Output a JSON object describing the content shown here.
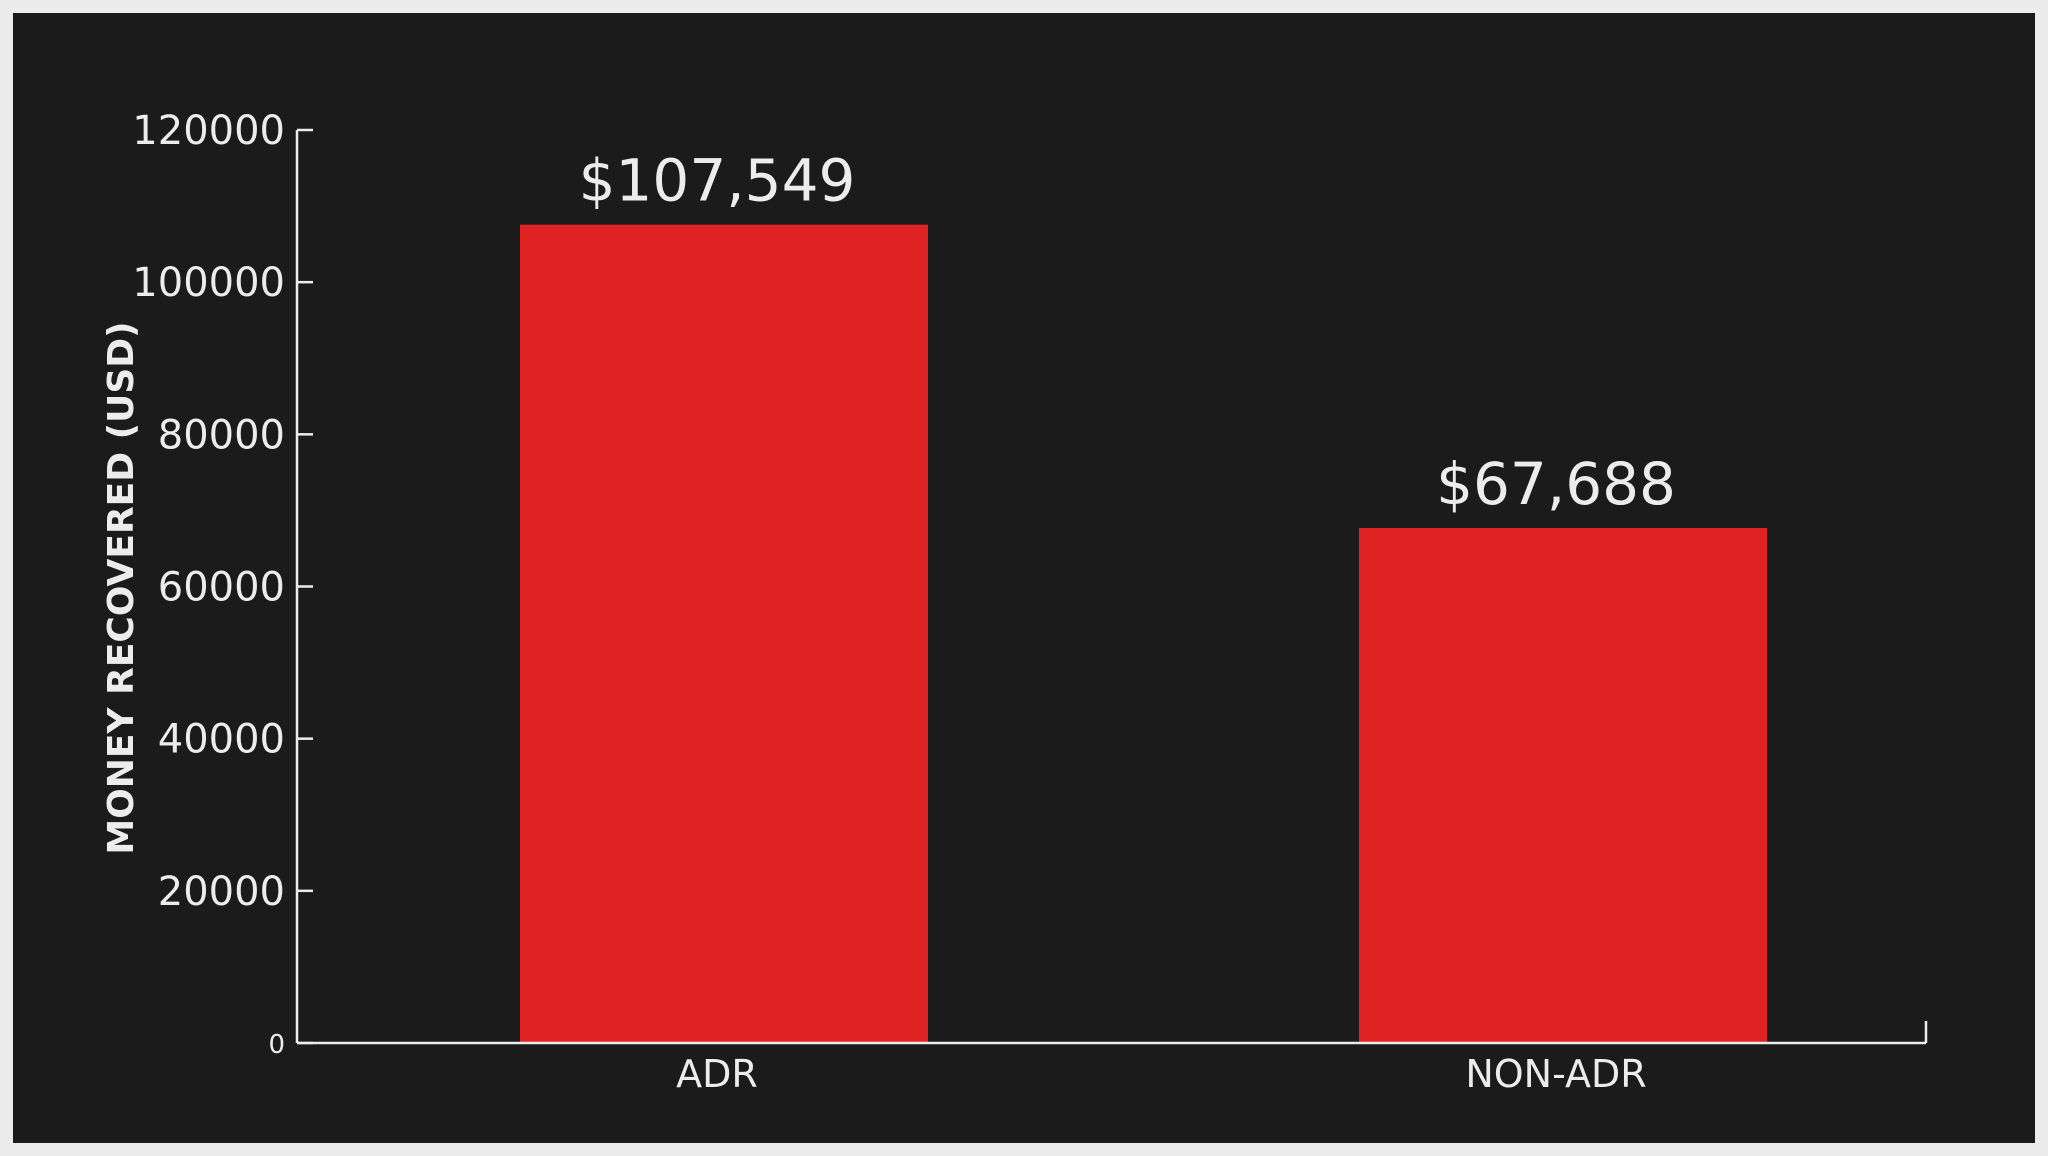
{
  "chart_data": {
    "type": "bar",
    "title": "",
    "xlabel": "",
    "ylabel": "MONEY RECOVERED (USD)",
    "categories": [
      "ADR",
      "NON-ADR"
    ],
    "values": [
      107549,
      67688
    ],
    "data_labels": [
      "$107,549",
      "$67,688"
    ],
    "ylim": [
      0,
      120000
    ],
    "yticks": [
      0,
      20000,
      40000,
      60000,
      80000,
      100000,
      120000
    ],
    "ytick_labels": [
      "0",
      "20000",
      "40000",
      "60000",
      "80000",
      "100000",
      "120000"
    ],
    "grid": false,
    "legend": "none",
    "colors": {
      "bar": "#e02222",
      "background": "#1b1b1b",
      "axis": "#ececec",
      "text": "#ececec"
    }
  }
}
